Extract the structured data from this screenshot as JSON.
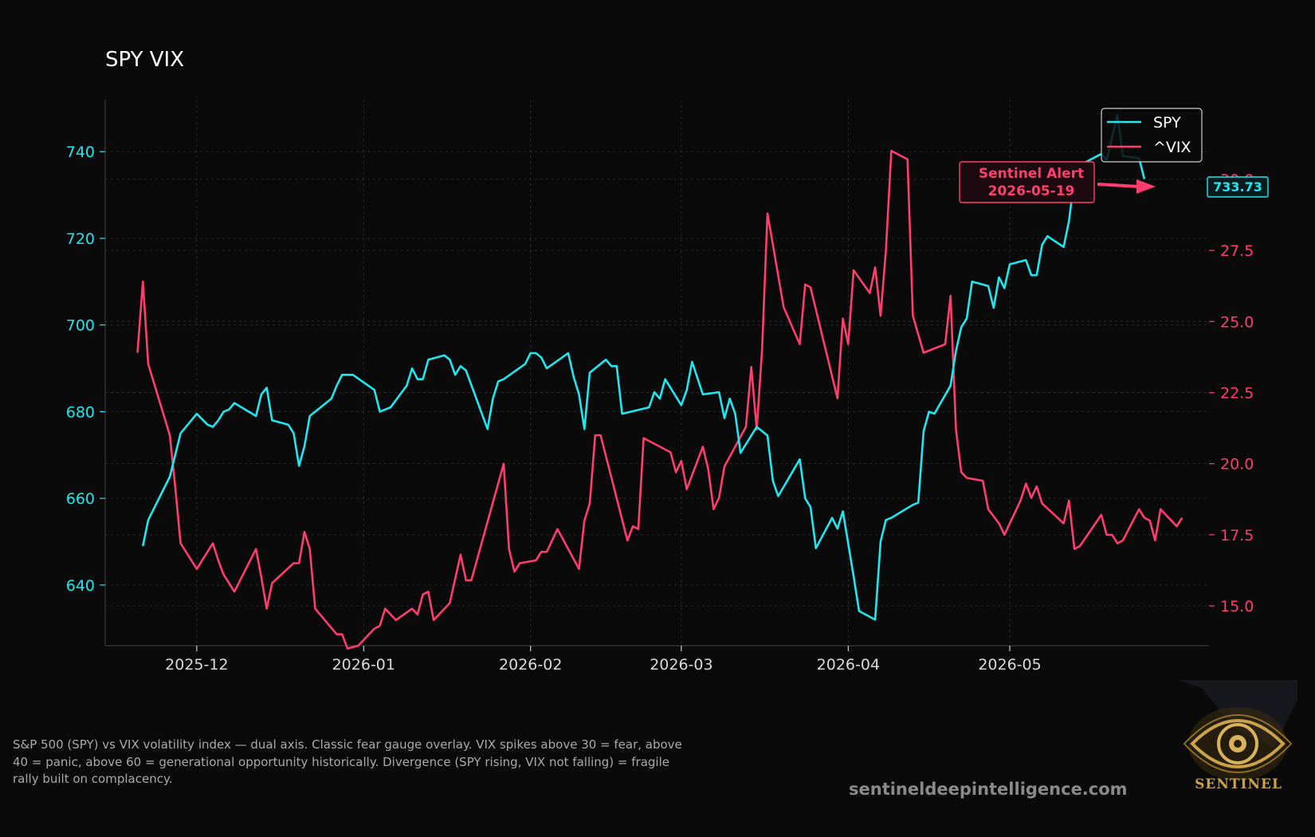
{
  "chart_data": {
    "type": "line",
    "title": "SPY VIX",
    "x_ticks": [
      "2025-12",
      "2026-01",
      "2026-02",
      "2026-03",
      "2026-04",
      "2026-05"
    ],
    "y_left": {
      "ticks": [
        640,
        660,
        680,
        700,
        720,
        740
      ],
      "range": [
        626,
        752
      ],
      "color": "#1ee8f0"
    },
    "y_right": {
      "ticks": [
        "15.0",
        "17.5",
        "20.0",
        "22.5",
        "25.0",
        "27.5",
        "30.0"
      ],
      "range": [
        13.6,
        32.8
      ],
      "color": "#ff3d6e"
    },
    "grid": true,
    "legend_position": "top-right",
    "series": [
      {
        "name": "SPY",
        "axis": "left",
        "color": "#1ee8f0",
        "points": [
          [
            "2025-11-21",
            649
          ],
          [
            "2025-11-22",
            655
          ],
          [
            "2025-11-26",
            665
          ],
          [
            "2025-11-28",
            675
          ],
          [
            "2025-12-01",
            679.5
          ],
          [
            "2025-12-03",
            677
          ],
          [
            "2025-12-04",
            676.5
          ],
          [
            "2025-12-05",
            678
          ],
          [
            "2025-12-06",
            680
          ],
          [
            "2025-12-07",
            680.5
          ],
          [
            "2025-12-08",
            682
          ],
          [
            "2025-12-12",
            679
          ],
          [
            "2025-12-13",
            684
          ],
          [
            "2025-12-14",
            685.5
          ],
          [
            "2025-12-15",
            678
          ],
          [
            "2025-12-18",
            677
          ],
          [
            "2025-12-19",
            675
          ],
          [
            "2025-12-20",
            667.5
          ],
          [
            "2025-12-21",
            672
          ],
          [
            "2025-12-22",
            679
          ],
          [
            "2025-12-26",
            683
          ],
          [
            "2025-12-27",
            686
          ],
          [
            "2025-12-28",
            688.5
          ],
          [
            "2025-12-30",
            688.5
          ],
          [
            "2026-01-03",
            685
          ],
          [
            "2026-01-04",
            680
          ],
          [
            "2026-01-06",
            681
          ],
          [
            "2026-01-09",
            686
          ],
          [
            "2026-01-10",
            690
          ],
          [
            "2026-01-11",
            687.5
          ],
          [
            "2026-01-12",
            687.5
          ],
          [
            "2026-01-13",
            692
          ],
          [
            "2026-01-16",
            693
          ],
          [
            "2026-01-17",
            692
          ],
          [
            "2026-01-18",
            688.5
          ],
          [
            "2026-01-19",
            690.5
          ],
          [
            "2026-01-20",
            689.5
          ],
          [
            "2026-01-24",
            676
          ],
          [
            "2026-01-25",
            683
          ],
          [
            "2026-01-26",
            687
          ],
          [
            "2026-01-27",
            687.5
          ],
          [
            "2026-01-31",
            691
          ],
          [
            "2026-02-01",
            693.5
          ],
          [
            "2026-02-02",
            693.5
          ],
          [
            "2026-02-03",
            692.5
          ],
          [
            "2026-02-04",
            690
          ],
          [
            "2026-02-08",
            693.5
          ],
          [
            "2026-02-09",
            688
          ],
          [
            "2026-02-10",
            684
          ],
          [
            "2026-02-11",
            676
          ],
          [
            "2026-02-12",
            689
          ],
          [
            "2026-02-15",
            692
          ],
          [
            "2026-02-16",
            690.5
          ],
          [
            "2026-02-17",
            690.5
          ],
          [
            "2026-02-18",
            679.5
          ],
          [
            "2026-02-23",
            681
          ],
          [
            "2026-02-24",
            684.5
          ],
          [
            "2026-02-25",
            683
          ],
          [
            "2026-02-26",
            687.5
          ],
          [
            "2026-03-01",
            681.5
          ],
          [
            "2026-03-02",
            685
          ],
          [
            "2026-03-03",
            691.5
          ],
          [
            "2026-03-05",
            684
          ],
          [
            "2026-03-08",
            684.5
          ],
          [
            "2026-03-09",
            678.5
          ],
          [
            "2026-03-10",
            683
          ],
          [
            "2026-03-11",
            679.5
          ],
          [
            "2026-03-12",
            670.5
          ],
          [
            "2026-03-15",
            676.5
          ],
          [
            "2026-03-17",
            674.5
          ],
          [
            "2026-03-18",
            664
          ],
          [
            "2026-03-19",
            660.5
          ],
          [
            "2026-03-23",
            669
          ],
          [
            "2026-03-24",
            660
          ],
          [
            "2026-03-25",
            658
          ],
          [
            "2026-03-26",
            648.5
          ],
          [
            "2026-03-29",
            655.5
          ],
          [
            "2026-03-30",
            653
          ],
          [
            "2026-03-31",
            657
          ],
          [
            "2026-04-02",
            642
          ],
          [
            "2026-04-03",
            634
          ],
          [
            "2026-04-06",
            632
          ],
          [
            "2026-04-07",
            650
          ],
          [
            "2026-04-08",
            655
          ],
          [
            "2026-04-09",
            655.5
          ],
          [
            "2026-04-13",
            658.5
          ],
          [
            "2026-04-14",
            659
          ],
          [
            "2026-04-15",
            675.5
          ],
          [
            "2026-04-16",
            680
          ],
          [
            "2026-04-17",
            679.5
          ],
          [
            "2026-04-20",
            686
          ],
          [
            "2026-04-21",
            694
          ],
          [
            "2026-04-22",
            699.5
          ],
          [
            "2026-04-23",
            701.5
          ],
          [
            "2026-04-24",
            710
          ],
          [
            "2026-04-27",
            709
          ],
          [
            "2026-04-28",
            704
          ],
          [
            "2026-04-29",
            711
          ],
          [
            "2026-04-30",
            708.5
          ],
          [
            "2026-05-01",
            714
          ],
          [
            "2026-05-04",
            715
          ],
          [
            "2026-05-05",
            711.5
          ],
          [
            "2026-05-06",
            711.5
          ],
          [
            "2026-05-07",
            718.5
          ],
          [
            "2026-05-08",
            720.5
          ],
          [
            "2026-05-11",
            718
          ],
          [
            "2026-05-12",
            724
          ],
          [
            "2026-05-13",
            734
          ],
          [
            "2026-05-14",
            733
          ],
          [
            "2026-05-15",
            737.5
          ],
          [
            "2026-05-18",
            739.5
          ],
          [
            "2026-05-19",
            738
          ],
          [
            "2026-05-21",
            748.5
          ],
          [
            "2026-05-22",
            739
          ],
          [
            "2026-05-25",
            738.5
          ],
          [
            "2026-05-26",
            733.7
          ]
        ]
      },
      {
        "name": "^VIX",
        "axis": "right",
        "color": "#ff3d6e",
        "points": [
          [
            "2025-11-20",
            23.9
          ],
          [
            "2025-11-21",
            26.4
          ],
          [
            "2025-11-22",
            23.5
          ],
          [
            "2025-11-26",
            21
          ],
          [
            "2025-11-27",
            19.2
          ],
          [
            "2025-11-28",
            17.2
          ],
          [
            "2025-12-01",
            16.3
          ],
          [
            "2025-12-04",
            17.2
          ],
          [
            "2025-12-05",
            16.6
          ],
          [
            "2025-12-06",
            16.1
          ],
          [
            "2025-12-08",
            15.5
          ],
          [
            "2025-12-12",
            17.0
          ],
          [
            "2025-12-13",
            16
          ],
          [
            "2025-12-14",
            14.9
          ],
          [
            "2025-12-15",
            15.8
          ],
          [
            "2025-12-19",
            16.5
          ],
          [
            "2025-12-20",
            16.5
          ],
          [
            "2025-12-21",
            17.6
          ],
          [
            "2025-12-22",
            17.0
          ],
          [
            "2025-12-23",
            14.9
          ],
          [
            "2025-12-27",
            14.0
          ],
          [
            "2025-12-28",
            14.0
          ],
          [
            "2025-12-29",
            13.5
          ],
          [
            "2025-12-31",
            13.6
          ],
          [
            "2026-01-03",
            14.2
          ],
          [
            "2026-01-04",
            14.3
          ],
          [
            "2026-01-05",
            14.9
          ],
          [
            "2026-01-07",
            14.5
          ],
          [
            "2026-01-10",
            14.9
          ],
          [
            "2026-01-11",
            14.7
          ],
          [
            "2026-01-12",
            15.4
          ],
          [
            "2026-01-13",
            15.5
          ],
          [
            "2026-01-14",
            14.5
          ],
          [
            "2026-01-17",
            15.1
          ],
          [
            "2026-01-19",
            16.8
          ],
          [
            "2026-01-20",
            15.9
          ],
          [
            "2026-01-21",
            15.9
          ],
          [
            "2026-01-27",
            20
          ],
          [
            "2026-01-28",
            17.0
          ],
          [
            "2026-01-29",
            16.2
          ],
          [
            "2026-01-30",
            16.5
          ],
          [
            "2026-02-02",
            16.6
          ],
          [
            "2026-02-03",
            16.9
          ],
          [
            "2026-02-04",
            16.9
          ],
          [
            "2026-02-06",
            17.7
          ],
          [
            "2026-02-10",
            16.3
          ],
          [
            "2026-02-11",
            18.0
          ],
          [
            "2026-02-12",
            18.6
          ],
          [
            "2026-02-13",
            21.0
          ],
          [
            "2026-02-14",
            21.0
          ],
          [
            "2026-02-19",
            17.3
          ],
          [
            "2026-02-20",
            17.8
          ],
          [
            "2026-02-21",
            17.7
          ],
          [
            "2026-02-22",
            20.9
          ],
          [
            "2026-02-27",
            20.4
          ],
          [
            "2026-02-28",
            19.7
          ],
          [
            "2026-03-01",
            20.1
          ],
          [
            "2026-03-02",
            19.1
          ],
          [
            "2026-03-05",
            20.6
          ],
          [
            "2026-03-06",
            19.8
          ],
          [
            "2026-03-07",
            18.4
          ],
          [
            "2026-03-08",
            18.8
          ],
          [
            "2026-03-09",
            19.9
          ],
          [
            "2026-03-13",
            21.3
          ],
          [
            "2026-03-14",
            23.4
          ],
          [
            "2026-03-15",
            21.2
          ],
          [
            "2026-03-16",
            24
          ],
          [
            "2026-03-17",
            28.8
          ],
          [
            "2026-03-20",
            25.5
          ],
          [
            "2026-03-23",
            24.2
          ],
          [
            "2026-03-24",
            26.3
          ],
          [
            "2026-03-25",
            26.2
          ],
          [
            "2026-03-30",
            22.3
          ],
          [
            "2026-03-31",
            25.1
          ],
          [
            "2026-04-01",
            24.2
          ],
          [
            "2026-04-02",
            26.8
          ],
          [
            "2026-04-05",
            26.0
          ],
          [
            "2026-04-06",
            26.9
          ],
          [
            "2026-04-07",
            25.2
          ],
          [
            "2026-04-08",
            27.5
          ],
          [
            "2026-04-09",
            31.0
          ],
          [
            "2026-04-12",
            30.7
          ],
          [
            "2026-04-13",
            25.2
          ],
          [
            "2026-04-15",
            23.9
          ],
          [
            "2026-04-19",
            24.2
          ],
          [
            "2026-04-20",
            25.9
          ],
          [
            "2026-04-21",
            21.2
          ],
          [
            "2026-04-22",
            19.7
          ],
          [
            "2026-04-23",
            19.5
          ],
          [
            "2026-04-26",
            19.4
          ],
          [
            "2026-04-27",
            18.4
          ],
          [
            "2026-04-29",
            17.9
          ],
          [
            "2026-04-30",
            17.5
          ],
          [
            "2026-05-03",
            18.7
          ],
          [
            "2026-05-04",
            19.3
          ],
          [
            "2026-05-05",
            18.8
          ],
          [
            "2026-05-06",
            19.2
          ],
          [
            "2026-05-07",
            18.6
          ],
          [
            "2026-05-11",
            17.9
          ],
          [
            "2026-05-12",
            18.7
          ],
          [
            "2026-05-13",
            17.0
          ],
          [
            "2026-05-14",
            17.1
          ],
          [
            "2026-05-18",
            18.2
          ],
          [
            "2026-05-19",
            17.5
          ],
          [
            "2026-05-20",
            17.5
          ],
          [
            "2026-05-21",
            17.2
          ],
          [
            "2026-05-22",
            17.3
          ],
          [
            "2026-05-25",
            18.4
          ],
          [
            "2026-05-26",
            18.1
          ],
          [
            "2026-05-27",
            18.0
          ],
          [
            "2026-05-28",
            17.3
          ],
          [
            "2026-05-29",
            18.4
          ],
          [
            "2026-06-01",
            17.8
          ],
          [
            "2026-06-02",
            18.1
          ]
        ]
      }
    ],
    "last_value_label": "733.73",
    "annotation": {
      "title": "Sentinel Alert",
      "date": "2026-05-19",
      "color": "#ff3d6e"
    }
  },
  "caption": "S&P 500 (SPY) vs VIX volatility index — dual axis. Classic fear gauge overlay. VIX spikes above 30 = fear, above 40 = panic, above 60 = generational opportunity historically. Divergence (SPY rising, VIX not falling) = fragile rally built on complacency.",
  "website": "sentineldeepintelligence.com",
  "logo": {
    "text": "SENTINEL",
    "icon": "eye-logo-icon",
    "color": "#c9a24a"
  }
}
